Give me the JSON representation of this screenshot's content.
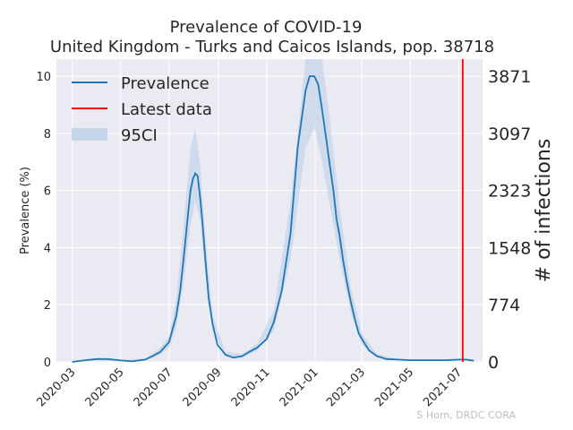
{
  "chart_data": {
    "type": "line",
    "title": "Prevalence of COVID-19",
    "subtitle": "United Kingdom - Turks and Caicos Islands, pop. 38718",
    "ylabel": "Prevalence (%)",
    "ylabel_right": "# of infections",
    "credit": "S Horn, DRDC CORA",
    "ylim": [
      0,
      10.6
    ],
    "xlim": [
      "2020-02-10",
      "2021-07-31"
    ],
    "y_ticks": [
      0,
      2,
      4,
      6,
      8,
      10
    ],
    "y_ticks_right": [
      "0",
      "774",
      "1548",
      "2323",
      "3097",
      "3871"
    ],
    "x_ticks": [
      "2020-03",
      "2020-05",
      "2020-07",
      "2020-09",
      "2020-11",
      "2021-01",
      "2021-03",
      "2021-05",
      "2021-07"
    ],
    "legend": {
      "position": "top-left",
      "entries": [
        "Prevalence",
        "Latest data",
        "95CI"
      ]
    },
    "colors": {
      "prevalence": "#1f77b4",
      "latest": "#ff0000",
      "ci": "#c5d5ea",
      "background": "#eaeaf2",
      "grid": "#ffffff"
    },
    "latest_data_date": "2021-07-06",
    "series": [
      {
        "name": "Prevalence",
        "x": [
          "2020-03-01",
          "2020-03-15",
          "2020-04-01",
          "2020-04-15",
          "2020-05-01",
          "2020-05-15",
          "2020-06-01",
          "2020-06-10",
          "2020-06-20",
          "2020-07-01",
          "2020-07-05",
          "2020-07-10",
          "2020-07-15",
          "2020-07-20",
          "2020-07-25",
          "2020-07-28",
          "2020-07-31",
          "2020-08-03",
          "2020-08-06",
          "2020-08-09",
          "2020-08-12",
          "2020-08-16",
          "2020-08-20",
          "2020-08-25",
          "2020-08-31",
          "2020-09-10",
          "2020-09-20",
          "2020-10-01",
          "2020-10-10",
          "2020-10-20",
          "2020-11-01",
          "2020-11-10",
          "2020-11-20",
          "2020-12-01",
          "2020-12-10",
          "2020-12-20",
          "2020-12-25",
          "2020-12-31",
          "2021-01-05",
          "2021-01-10",
          "2021-01-15",
          "2021-01-20",
          "2021-01-24",
          "2021-01-28",
          "2021-02-01",
          "2021-02-05",
          "2021-02-10",
          "2021-02-15",
          "2021-02-20",
          "2021-02-25",
          "2021-03-01",
          "2021-03-10",
          "2021-03-20",
          "2021-04-01",
          "2021-04-15",
          "2021-05-01",
          "2021-05-15",
          "2021-06-01",
          "2021-06-15",
          "2021-07-01",
          "2021-07-10",
          "2021-07-20"
        ],
        "y": [
          0.0,
          0.05,
          0.1,
          0.1,
          0.05,
          0.02,
          0.08,
          0.2,
          0.35,
          0.7,
          1.1,
          1.6,
          2.5,
          3.8,
          5.2,
          6.0,
          6.4,
          6.6,
          6.5,
          5.8,
          4.9,
          3.5,
          2.2,
          1.3,
          0.6,
          0.25,
          0.15,
          0.2,
          0.35,
          0.5,
          0.8,
          1.4,
          2.5,
          4.5,
          7.5,
          9.5,
          10.0,
          10.0,
          9.7,
          8.8,
          7.8,
          6.8,
          6.0,
          5.0,
          4.4,
          3.6,
          2.8,
          2.1,
          1.5,
          1.0,
          0.8,
          0.4,
          0.2,
          0.1,
          0.08,
          0.06,
          0.06,
          0.06,
          0.06,
          0.08,
          0.08,
          0.04
        ]
      },
      {
        "name": "95CI",
        "x": [
          "2020-03-01",
          "2020-04-01",
          "2020-05-01",
          "2020-06-01",
          "2020-06-20",
          "2020-07-01",
          "2020-07-10",
          "2020-07-20",
          "2020-07-28",
          "2020-08-03",
          "2020-08-09",
          "2020-08-16",
          "2020-08-25",
          "2020-09-10",
          "2020-10-01",
          "2020-10-20",
          "2020-11-10",
          "2020-12-01",
          "2020-12-20",
          "2020-12-31",
          "2021-01-10",
          "2021-01-20",
          "2021-02-01",
          "2021-02-15",
          "2021-03-01",
          "2021-03-20",
          "2021-04-15",
          "2021-05-15",
          "2021-06-15",
          "2021-07-10",
          "2021-07-20"
        ],
        "lower": [
          0.0,
          0.06,
          0.03,
          0.05,
          0.25,
          0.5,
          1.2,
          2.9,
          4.8,
          5.6,
          5.0,
          3.0,
          1.1,
          0.2,
          0.15,
          0.4,
          1.1,
          3.6,
          7.5,
          8.2,
          7.0,
          5.4,
          3.6,
          1.7,
          0.6,
          0.15,
          0.06,
          0.04,
          0.04,
          0.05,
          0.03
        ],
        "upper": [
          0.02,
          0.14,
          0.08,
          0.12,
          0.5,
          0.9,
          2.2,
          5.0,
          7.5,
          8.2,
          7.0,
          4.3,
          1.6,
          0.35,
          0.28,
          0.65,
          1.8,
          5.6,
          11.5,
          12.5,
          10.8,
          8.4,
          5.4,
          2.6,
          1.0,
          0.28,
          0.1,
          0.08,
          0.08,
          0.11,
          0.05
        ]
      }
    ]
  }
}
